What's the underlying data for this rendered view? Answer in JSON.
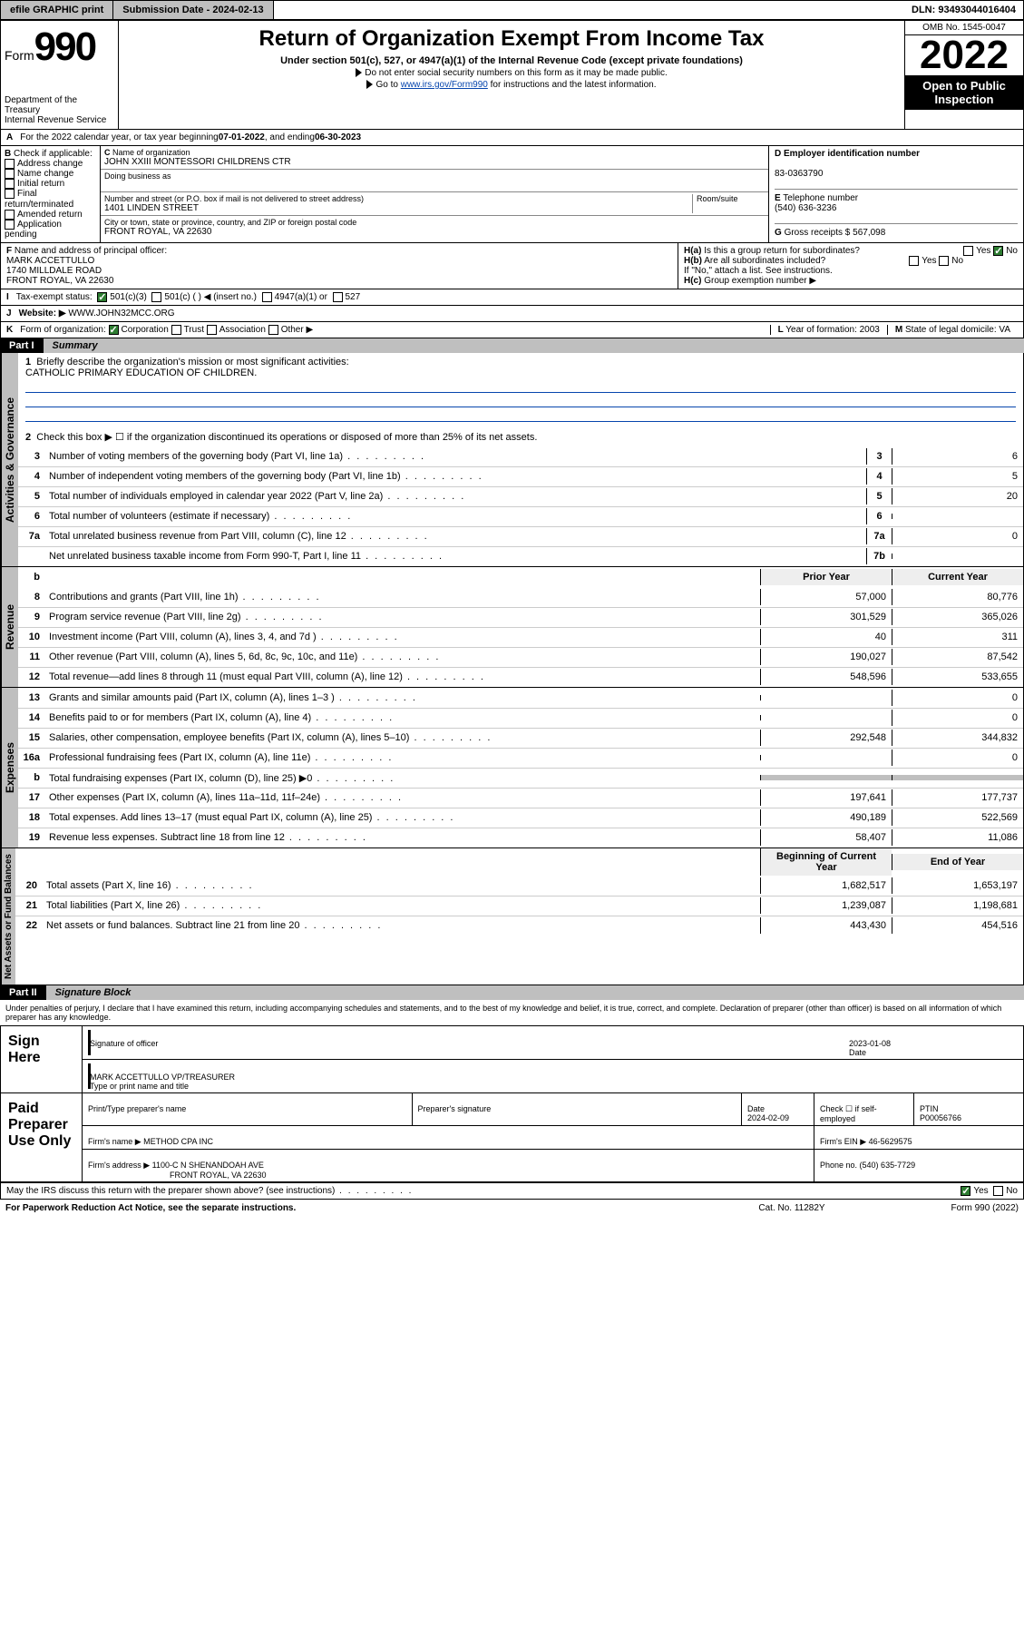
{
  "topbar": {
    "btn1": "efile GRAPHIC print",
    "subdate_label": "Submission Date - ",
    "subdate": "2024-02-13",
    "dln_label": "DLN: ",
    "dln": "93493044016404"
  },
  "header": {
    "form_label": "Form",
    "form_num": "990",
    "title": "Return of Organization Exempt From Income Tax",
    "subtitle": "Under section 501(c), 527, or 4947(a)(1) of the Internal Revenue Code (except private foundations)",
    "note1": "Do not enter social security numbers on this form as it may be made public.",
    "note2_pre": "Go to ",
    "note2_link": "www.irs.gov/Form990",
    "note2_post": " for instructions and the latest information.",
    "dept": "Department of the Treasury",
    "irs": "Internal Revenue Service",
    "omb": "OMB No. 1545-0047",
    "year": "2022",
    "inspect": "Open to Public Inspection"
  },
  "lineA": {
    "text_pre": "For the 2022 calendar year, or tax year beginning ",
    "begin": "07-01-2022",
    "mid": " , and ending ",
    "end": "06-30-2023"
  },
  "colB": {
    "label": "Check if applicable:",
    "items": [
      "Address change",
      "Name change",
      "Initial return",
      "Final return/terminated",
      "Amended return",
      "Application pending"
    ]
  },
  "colC": {
    "name_label": "Name of organization",
    "name": "JOHN XXIII MONTESSORI CHILDRENS CTR",
    "dba_label": "Doing business as",
    "dba": "",
    "addr_label": "Number and street (or P.O. box if mail is not delivered to street address)",
    "room_label": "Room/suite",
    "addr": "1401 LINDEN STREET",
    "city_label": "City or town, state or province, country, and ZIP or foreign postal code",
    "city": "FRONT ROYAL, VA  22630"
  },
  "colD": {
    "ein_label": "Employer identification number",
    "ein": "83-0363790",
    "phone_label": "Telephone number",
    "phone": "(540) 636-3236",
    "gross_label": "Gross receipts $ ",
    "gross": "567,098"
  },
  "rowF": {
    "label": "Name and address of principal officer:",
    "name": "MARK ACCETTULLO",
    "addr1": "1740 MILLDALE ROAD",
    "addr2": "FRONT ROYAL, VA  22630"
  },
  "rowH": {
    "ha": "Is this a group return for subordinates?",
    "hb": "Are all subordinates included?",
    "hb_note": "If \"No,\" attach a list. See instructions.",
    "hc": "Group exemption number ▶",
    "yes": "Yes",
    "no": "No"
  },
  "rowI": {
    "label": "Tax-exempt status:",
    "opts": [
      "501(c)(3)",
      "501(c) (  ) ◀ (insert no.)",
      "4947(a)(1) or",
      "527"
    ]
  },
  "rowJ": {
    "label": "Website: ▶",
    "val": "WWW.JOHN32MCC.ORG"
  },
  "rowK": {
    "label": "Form of organization:",
    "opts": [
      "Corporation",
      "Trust",
      "Association",
      "Other ▶"
    ]
  },
  "rowL": {
    "label": "Year of formation: ",
    "val": "2003"
  },
  "rowM": {
    "label": "State of legal domicile: ",
    "val": "VA"
  },
  "part1": {
    "num": "Part I",
    "title": "Summary"
  },
  "summary": {
    "q1": "Briefly describe the organization's mission or most significant activities:",
    "q1val": "CATHOLIC PRIMARY EDUCATION OF CHILDREN.",
    "q2": "Check this box ▶ ☐  if the organization discontinued its operations or disposed of more than 25% of its net assets.",
    "prior_hdr": "Prior Year",
    "curr_hdr": "Current Year",
    "boc_hdr": "Beginning of Current Year",
    "eoy_hdr": "End of Year",
    "lines_gov": [
      {
        "n": "3",
        "t": "Number of voting members of the governing body (Part VI, line 1a)",
        "box": "3",
        "v": "6"
      },
      {
        "n": "4",
        "t": "Number of independent voting members of the governing body (Part VI, line 1b)",
        "box": "4",
        "v": "5"
      },
      {
        "n": "5",
        "t": "Total number of individuals employed in calendar year 2022 (Part V, line 2a)",
        "box": "5",
        "v": "20"
      },
      {
        "n": "6",
        "t": "Total number of volunteers (estimate if necessary)",
        "box": "6",
        "v": ""
      },
      {
        "n": "7a",
        "t": "Total unrelated business revenue from Part VIII, column (C), line 12",
        "box": "7a",
        "v": "0"
      },
      {
        "n": "",
        "t": "Net unrelated business taxable income from Form 990-T, Part I, line 11",
        "box": "7b",
        "v": ""
      }
    ],
    "lines_rev": [
      {
        "n": "8",
        "t": "Contributions and grants (Part VIII, line 1h)",
        "p": "57,000",
        "c": "80,776"
      },
      {
        "n": "9",
        "t": "Program service revenue (Part VIII, line 2g)",
        "p": "301,529",
        "c": "365,026"
      },
      {
        "n": "10",
        "t": "Investment income (Part VIII, column (A), lines 3, 4, and 7d )",
        "p": "40",
        "c": "311"
      },
      {
        "n": "11",
        "t": "Other revenue (Part VIII, column (A), lines 5, 6d, 8c, 9c, 10c, and 11e)",
        "p": "190,027",
        "c": "87,542"
      },
      {
        "n": "12",
        "t": "Total revenue—add lines 8 through 11 (must equal Part VIII, column (A), line 12)",
        "p": "548,596",
        "c": "533,655"
      }
    ],
    "lines_exp": [
      {
        "n": "13",
        "t": "Grants and similar amounts paid (Part IX, column (A), lines 1–3 )",
        "p": "",
        "c": "0"
      },
      {
        "n": "14",
        "t": "Benefits paid to or for members (Part IX, column (A), line 4)",
        "p": "",
        "c": "0"
      },
      {
        "n": "15",
        "t": "Salaries, other compensation, employee benefits (Part IX, column (A), lines 5–10)",
        "p": "292,548",
        "c": "344,832"
      },
      {
        "n": "16a",
        "t": "Professional fundraising fees (Part IX, column (A), line 11e)",
        "p": "",
        "c": "0"
      },
      {
        "n": "b",
        "t": "Total fundraising expenses (Part IX, column (D), line 25) ▶0",
        "p": "shaded",
        "c": "shaded"
      },
      {
        "n": "17",
        "t": "Other expenses (Part IX, column (A), lines 11a–11d, 11f–24e)",
        "p": "197,641",
        "c": "177,737"
      },
      {
        "n": "18",
        "t": "Total expenses. Add lines 13–17 (must equal Part IX, column (A), line 25)",
        "p": "490,189",
        "c": "522,569"
      },
      {
        "n": "19",
        "t": "Revenue less expenses. Subtract line 18 from line 12",
        "p": "58,407",
        "c": "11,086"
      }
    ],
    "lines_net": [
      {
        "n": "20",
        "t": "Total assets (Part X, line 16)",
        "p": "1,682,517",
        "c": "1,653,197"
      },
      {
        "n": "21",
        "t": "Total liabilities (Part X, line 26)",
        "p": "1,239,087",
        "c": "1,198,681"
      },
      {
        "n": "22",
        "t": "Net assets or fund balances. Subtract line 21 from line 20",
        "p": "443,430",
        "c": "454,516"
      }
    ]
  },
  "vtabs": {
    "gov": "Activities & Governance",
    "rev": "Revenue",
    "exp": "Expenses",
    "net": "Net Assets or Fund Balances"
  },
  "part2": {
    "num": "Part II",
    "title": "Signature Block"
  },
  "penalties": "Under penalties of perjury, I declare that I have examined this return, including accompanying schedules and statements, and to the best of my knowledge and belief, it is true, correct, and complete. Declaration of preparer (other than officer) is based on all information of which preparer has any knowledge.",
  "sign": {
    "label": "Sign Here",
    "sig_label": "Signature of officer",
    "date_label": "Date",
    "date": "2023-01-08",
    "name": "MARK ACCETTULLO  VP/TREASURER",
    "name_label": "Type or print name and title"
  },
  "prep": {
    "label": "Paid Preparer Use Only",
    "h1": "Print/Type preparer's name",
    "h2": "Preparer's signature",
    "h3_label": "Date",
    "h3": "2024-02-09",
    "h4_label": "Check ☐ if self-employed",
    "h5_label": "PTIN",
    "h5": "P00056766",
    "firm_label": "Firm's name ▶ ",
    "firm": "METHOD CPA INC",
    "ein_label": "Firm's EIN ▶ ",
    "ein": "46-5629575",
    "addr_label": "Firm's address ▶ ",
    "addr1": "1100-C N SHENANDOAH AVE",
    "addr2": "FRONT ROYAL, VA  22630",
    "phone_label": "Phone no. ",
    "phone": "(540) 635-7729"
  },
  "discuss": {
    "q": "May the IRS discuss this return with the preparer shown above? (see instructions)",
    "yes": "Yes",
    "no": "No"
  },
  "footer": {
    "pra": "For Paperwork Reduction Act Notice, see the separate instructions.",
    "cat": "Cat. No. 11282Y",
    "form": "Form 990 (2022)"
  },
  "letters": {
    "A": "A",
    "B": "B",
    "C": "C",
    "D": "D",
    "E": "E",
    "F": "F",
    "G": "G",
    "H": "H",
    "I": "I",
    "J": "J",
    "K": "K",
    "L": "L",
    "M": "M",
    "b": "b",
    "Ha": "H(a)",
    "Hb": "H(b)",
    "Hc": "H(c)",
    "one": "1",
    "two": "2"
  }
}
